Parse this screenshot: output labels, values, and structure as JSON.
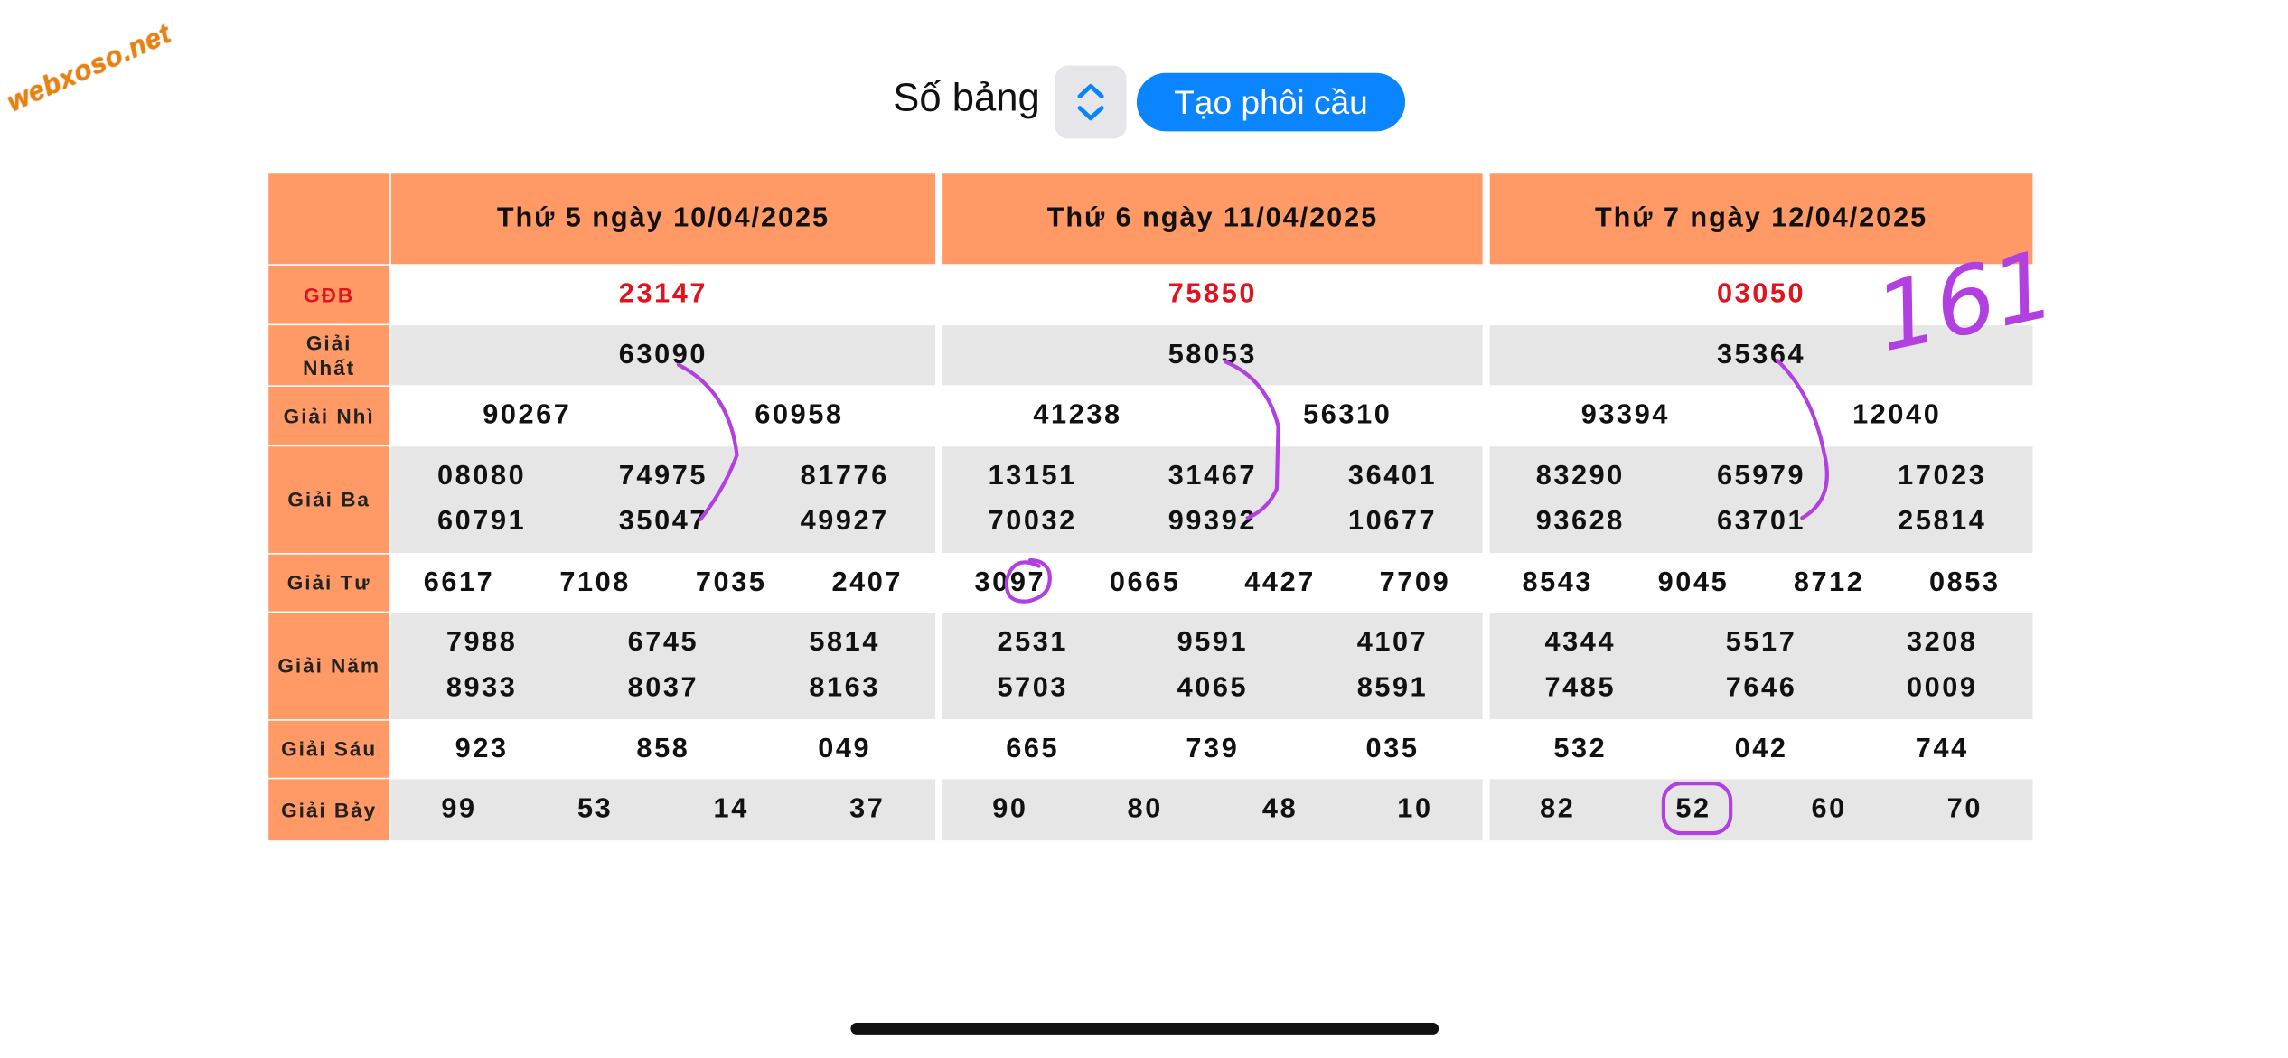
{
  "watermark": "webxoso.net",
  "toolbar": {
    "label": "Số bảng",
    "button": "Tạo phôi cầu"
  },
  "table": {
    "row_labels": [
      "GĐB",
      "Giải Nhất",
      "Giải Nhì",
      "Giải Ba",
      "Giải Tư",
      "Giải Năm",
      "Giải Sáu",
      "Giải Bảy"
    ],
    "days": [
      {
        "header": "Thứ 5 ngày 10/04/2025",
        "prizes": [
          [
            "23147"
          ],
          [
            "63090"
          ],
          [
            "90267",
            "60958"
          ],
          [
            "08080",
            "74975",
            "81776",
            "60791",
            "35047",
            "49927"
          ],
          [
            "6617",
            "7108",
            "7035",
            "2407"
          ],
          [
            "7988",
            "6745",
            "5814",
            "8933",
            "8037",
            "8163"
          ],
          [
            "923",
            "858",
            "049"
          ],
          [
            "99",
            "53",
            "14",
            "37"
          ]
        ]
      },
      {
        "header": "Thứ 6 ngày 11/04/2025",
        "prizes": [
          [
            "75850"
          ],
          [
            "58053"
          ],
          [
            "41238",
            "56310"
          ],
          [
            "13151",
            "31467",
            "36401",
            "70032",
            "99392",
            "10677"
          ],
          [
            "3097",
            "0665",
            "4427",
            "7709"
          ],
          [
            "2531",
            "9591",
            "4107",
            "5703",
            "4065",
            "8591"
          ],
          [
            "665",
            "739",
            "035"
          ],
          [
            "90",
            "80",
            "48",
            "10"
          ]
        ]
      },
      {
        "header": "Thứ 7 ngày 12/04/2025",
        "prizes": [
          [
            "03050"
          ],
          [
            "35364"
          ],
          [
            "93394",
            "12040"
          ],
          [
            "83290",
            "65979",
            "17023",
            "93628",
            "63701",
            "25814"
          ],
          [
            "8543",
            "9045",
            "8712",
            "0853"
          ],
          [
            "4344",
            "5517",
            "3208",
            "7485",
            "7646",
            "0009"
          ],
          [
            "532",
            "042",
            "744"
          ],
          [
            "82",
            "52",
            "60",
            "70"
          ]
        ]
      }
    ]
  },
  "annotation": "161"
}
